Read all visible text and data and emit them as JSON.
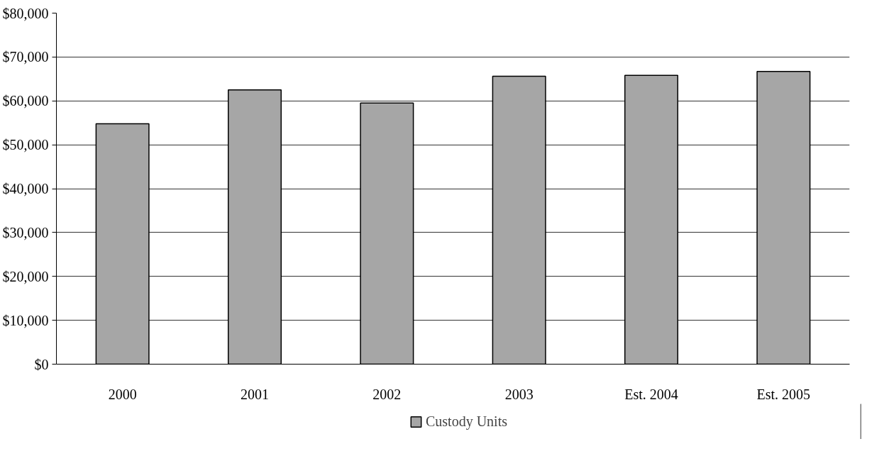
{
  "chart_data": {
    "type": "bar",
    "categories": [
      "2000",
      "2001",
      "2002",
      "2003",
      "Est. 2004",
      "Est. 2005"
    ],
    "series": [
      {
        "name": "Custody Units",
        "color": "#a6a6a6",
        "values": [
          54800,
          62500,
          59500,
          65600,
          65800,
          66700
        ]
      }
    ],
    "ylim": [
      0,
      80000
    ],
    "yticks": [
      {
        "value": 0,
        "label": "$0"
      },
      {
        "value": 10000,
        "label": "$10,000"
      },
      {
        "value": 20000,
        "label": "$20,000"
      },
      {
        "value": 30000,
        "label": "$30,000"
      },
      {
        "value": 40000,
        "label": "$40,000"
      },
      {
        "value": 50000,
        "label": "$50,000"
      },
      {
        "value": 60000,
        "label": "$60,000"
      },
      {
        "value": 70000,
        "label": "$70,000"
      },
      {
        "value": 80000,
        "label": "$80,000"
      }
    ],
    "grid": "y",
    "legend": "bottom"
  }
}
